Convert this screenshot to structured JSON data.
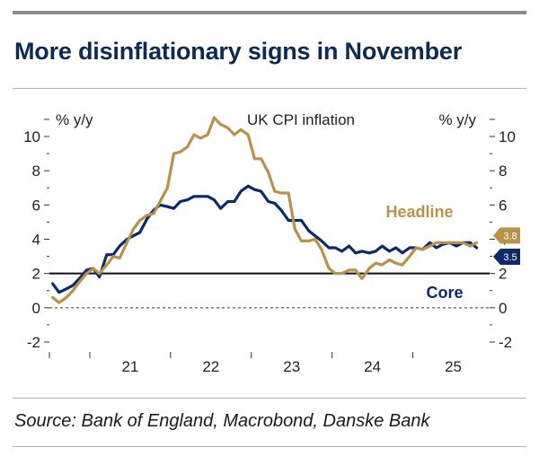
{
  "header": {
    "title": "More disinflationary signs in November"
  },
  "footer": {
    "source": "Source: Bank of England, Macrobond, Danske Bank"
  },
  "chart_data": {
    "type": "line",
    "title": "UK CPI inflation",
    "ylabel_left": "% y/y",
    "ylabel_right": "% y/y",
    "ylim": [
      -2,
      11
    ],
    "yticks": [
      -2,
      0,
      2,
      4,
      6,
      8,
      10
    ],
    "ytick_labels": [
      "-2",
      "0",
      "2",
      "4",
      "6",
      "8",
      "10"
    ],
    "x_start": 2020.5,
    "x_end": 2025.95,
    "xtick_labels": [
      {
        "label": "21",
        "at": 2021.5
      },
      {
        "label": "22",
        "at": 2022.5
      },
      {
        "label": "23",
        "at": 2023.5
      },
      {
        "label": "24",
        "at": 2024.5
      },
      {
        "label": "25",
        "at": 2025.5
      }
    ],
    "year_boundaries": [
      2021,
      2022,
      2023,
      2024,
      2025
    ],
    "reference_line": {
      "value": 2,
      "style": "solid"
    },
    "zero_line": {
      "value": 0,
      "style": "dashed"
    },
    "colors": {
      "headline": "#b8914a",
      "core": "#0c2a6b",
      "reference": "#111111"
    },
    "series": [
      {
        "name": "Headline",
        "color": "#b8914a",
        "end_label": "3.8",
        "x": [
          2020.54,
          2020.62,
          2020.71,
          2020.79,
          2020.87,
          2020.96,
          2021.04,
          2021.12,
          2021.21,
          2021.29,
          2021.37,
          2021.46,
          2021.54,
          2021.62,
          2021.71,
          2021.79,
          2021.87,
          2021.96,
          2022.04,
          2022.12,
          2022.21,
          2022.29,
          2022.37,
          2022.46,
          2022.54,
          2022.62,
          2022.71,
          2022.79,
          2022.87,
          2022.96,
          2023.04,
          2023.12,
          2023.21,
          2023.29,
          2023.37,
          2023.46,
          2023.54,
          2023.62,
          2023.71,
          2023.79,
          2023.87,
          2023.96,
          2024.04,
          2024.12,
          2024.21,
          2024.29,
          2024.37,
          2024.46,
          2024.54,
          2024.62,
          2024.71,
          2024.79,
          2024.87,
          2024.96,
          2025.04,
          2025.12,
          2025.21,
          2025.29,
          2025.37,
          2025.46,
          2025.54,
          2025.62,
          2025.71,
          2025.79
        ],
        "values": [
          0.6,
          0.3,
          0.6,
          1.0,
          1.5,
          2.0,
          2.3,
          2.0,
          2.5,
          3.0,
          2.9,
          3.8,
          4.6,
          5.1,
          5.4,
          5.5,
          6.2,
          7.0,
          9.0,
          9.1,
          9.4,
          10.1,
          9.9,
          10.1,
          11.1,
          10.7,
          10.5,
          10.1,
          10.4,
          10.1,
          8.7,
          8.7,
          7.9,
          6.8,
          6.7,
          6.7,
          4.6,
          3.9,
          3.9,
          4.0,
          3.4,
          2.3,
          2.0,
          2.0,
          2.2,
          2.2,
          1.7,
          2.3,
          2.6,
          2.5,
          2.8,
          2.6,
          2.5,
          3.0,
          3.5,
          3.4,
          3.6,
          3.8,
          3.8,
          3.8,
          3.8,
          3.8,
          3.6,
          3.8
        ]
      },
      {
        "name": "Core",
        "color": "#0c2a6b",
        "end_label": "3.5",
        "x": [
          2020.54,
          2020.62,
          2020.71,
          2020.79,
          2020.87,
          2020.96,
          2021.04,
          2021.12,
          2021.21,
          2021.29,
          2021.37,
          2021.46,
          2021.54,
          2021.62,
          2021.71,
          2021.79,
          2021.87,
          2021.96,
          2022.04,
          2022.12,
          2022.21,
          2022.29,
          2022.37,
          2022.46,
          2022.54,
          2022.62,
          2022.71,
          2022.79,
          2022.87,
          2022.96,
          2023.04,
          2023.12,
          2023.21,
          2023.29,
          2023.37,
          2023.46,
          2023.54,
          2023.62,
          2023.71,
          2023.79,
          2023.87,
          2023.96,
          2024.04,
          2024.12,
          2024.21,
          2024.29,
          2024.37,
          2024.46,
          2024.54,
          2024.62,
          2024.71,
          2024.79,
          2024.87,
          2024.96,
          2025.04,
          2025.12,
          2025.21,
          2025.29,
          2025.37,
          2025.46,
          2025.54,
          2025.62,
          2025.71,
          2025.79
        ],
        "values": [
          1.4,
          0.9,
          1.1,
          1.3,
          1.7,
          2.2,
          2.3,
          1.8,
          3.1,
          3.1,
          3.6,
          4.0,
          4.2,
          4.4,
          5.2,
          5.7,
          6.0,
          5.9,
          5.8,
          6.2,
          6.3,
          6.5,
          6.5,
          6.5,
          6.3,
          5.8,
          6.2,
          6.2,
          6.8,
          7.1,
          6.9,
          6.8,
          6.2,
          6.1,
          5.7,
          5.1,
          5.1,
          5.1,
          4.5,
          4.2,
          3.9,
          3.5,
          3.5,
          3.3,
          3.6,
          3.2,
          3.3,
          3.2,
          3.3,
          3.6,
          3.3,
          3.5,
          3.2,
          3.5,
          3.5,
          3.4,
          3.8,
          3.5,
          3.7,
          3.8,
          3.6,
          3.8,
          3.8,
          3.5
        ]
      }
    ],
    "annotations": [
      {
        "text": "Headline",
        "series": "Headline"
      },
      {
        "text": "Core",
        "series": "Core"
      }
    ]
  }
}
